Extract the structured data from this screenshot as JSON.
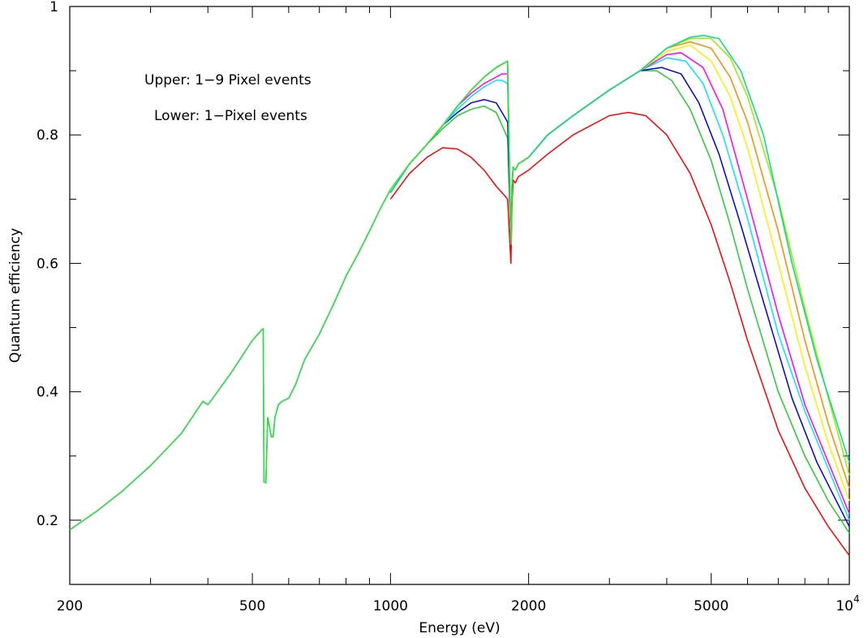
{
  "chart_data": {
    "type": "line",
    "title": "",
    "xlabel": "Energy (eV)",
    "ylabel": "Quantum efficiency",
    "xscale": "log",
    "xlim": [
      200,
      10000
    ],
    "ylim": [
      0.1,
      1.0
    ],
    "grid": false,
    "legend": "none",
    "x_ticks": [
      {
        "value": 200,
        "label": "200"
      },
      {
        "value": 500,
        "label": "500"
      },
      {
        "value": 1000,
        "label": "1000"
      },
      {
        "value": 2000,
        "label": "2000"
      },
      {
        "value": 5000,
        "label": "5000"
      },
      {
        "value": 10000,
        "label": "10",
        "sup": "4"
      }
    ],
    "y_ticks": [
      {
        "value": 0.2,
        "label": "0.2"
      },
      {
        "value": 0.4,
        "label": "0.4"
      },
      {
        "value": 0.6,
        "label": "0.6"
      },
      {
        "value": 0.8,
        "label": "0.8"
      },
      {
        "value": 1.0,
        "label": "1"
      }
    ],
    "annotations": [
      "Upper: 1−9 Pixel events",
      "Lower: 1−Pixel events"
    ],
    "common_low_energy": {
      "x": [
        200,
        230,
        260,
        300,
        350,
        390,
        400,
        410,
        450,
        500,
        525,
        528,
        530,
        535,
        540,
        545,
        550,
        555,
        560,
        570,
        580,
        600,
        620,
        650,
        700,
        750,
        800,
        850,
        900,
        950,
        1000
      ],
      "y": [
        0.185,
        0.215,
        0.245,
        0.285,
        0.335,
        0.385,
        0.38,
        0.39,
        0.43,
        0.48,
        0.497,
        0.498,
        0.26,
        0.258,
        0.36,
        0.345,
        0.33,
        0.33,
        0.36,
        0.38,
        0.385,
        0.39,
        0.41,
        0.45,
        0.49,
        0.535,
        0.58,
        0.615,
        0.65,
        0.685,
        0.715
      ]
    },
    "series": [
      {
        "color": "#ff0000",
        "x": [
          1000,
          1100,
          1200,
          1300,
          1400,
          1500,
          1600,
          1700,
          1750,
          1800,
          1830,
          1840,
          1850,
          1870,
          1900,
          2000,
          2200,
          2500,
          3000,
          3300,
          3600,
          4000,
          4500,
          5000,
          5500,
          6000,
          7000,
          8000,
          9000,
          10000
        ],
        "y": [
          0.7,
          0.74,
          0.765,
          0.78,
          0.778,
          0.765,
          0.745,
          0.72,
          0.71,
          0.7,
          0.6,
          0.69,
          0.73,
          0.725,
          0.735,
          0.745,
          0.77,
          0.8,
          0.83,
          0.835,
          0.83,
          0.8,
          0.74,
          0.66,
          0.57,
          0.48,
          0.34,
          0.25,
          0.19,
          0.145
        ]
      },
      {
        "color": "#22cc33",
        "x": [
          1000,
          1100,
          1200,
          1300,
          1400,
          1500,
          1600,
          1700,
          1750,
          1800,
          1830,
          1840,
          1850,
          1870,
          1900,
          2000,
          2200,
          2500,
          3000,
          3500,
          3800,
          4100,
          4500,
          5000,
          5500,
          6000,
          7000,
          8000,
          9000,
          10000
        ],
        "y": [
          0.71,
          0.755,
          0.785,
          0.81,
          0.83,
          0.84,
          0.845,
          0.835,
          0.815,
          0.795,
          0.63,
          0.72,
          0.75,
          0.745,
          0.755,
          0.765,
          0.8,
          0.83,
          0.87,
          0.9,
          0.9,
          0.885,
          0.84,
          0.76,
          0.66,
          0.56,
          0.4,
          0.3,
          0.23,
          0.18
        ]
      },
      {
        "color": "#0000dd",
        "x": [
          1000,
          1100,
          1200,
          1300,
          1400,
          1500,
          1600,
          1700,
          1750,
          1800,
          1830,
          1840,
          1850,
          1870,
          1900,
          2000,
          2200,
          2500,
          3000,
          3500,
          3900,
          4300,
          4700,
          5200,
          5800,
          6500,
          7500,
          8500,
          10000
        ],
        "y": [
          0.71,
          0.755,
          0.785,
          0.815,
          0.835,
          0.85,
          0.855,
          0.85,
          0.835,
          0.82,
          0.63,
          0.72,
          0.75,
          0.745,
          0.755,
          0.765,
          0.8,
          0.83,
          0.87,
          0.9,
          0.905,
          0.895,
          0.85,
          0.77,
          0.66,
          0.54,
          0.39,
          0.29,
          0.19
        ]
      },
      {
        "color": "#00e5ff",
        "x": [
          1000,
          1100,
          1200,
          1300,
          1400,
          1500,
          1600,
          1700,
          1750,
          1800,
          1830,
          1840,
          1850,
          1870,
          1900,
          2000,
          2200,
          2500,
          3000,
          3500,
          4000,
          4400,
          4800,
          5300,
          6000,
          7000,
          8000,
          9000,
          10000
        ],
        "y": [
          0.71,
          0.755,
          0.785,
          0.815,
          0.84,
          0.86,
          0.875,
          0.885,
          0.885,
          0.88,
          0.63,
          0.72,
          0.75,
          0.745,
          0.755,
          0.765,
          0.8,
          0.83,
          0.87,
          0.9,
          0.92,
          0.915,
          0.88,
          0.8,
          0.67,
          0.49,
          0.37,
          0.28,
          0.2
        ]
      },
      {
        "color": "#ff00ff",
        "x": [
          1000,
          1100,
          1200,
          1300,
          1400,
          1500,
          1600,
          1700,
          1750,
          1800,
          1830,
          1840,
          1850,
          1870,
          1900,
          2000,
          2200,
          2500,
          3000,
          3500,
          4000,
          4300,
          4800,
          5300,
          6000,
          7000,
          8000,
          9000,
          10000
        ],
        "y": [
          0.71,
          0.755,
          0.785,
          0.815,
          0.845,
          0.865,
          0.88,
          0.89,
          0.895,
          0.895,
          0.63,
          0.72,
          0.75,
          0.745,
          0.755,
          0.765,
          0.8,
          0.83,
          0.87,
          0.9,
          0.925,
          0.928,
          0.905,
          0.84,
          0.7,
          0.52,
          0.38,
          0.29,
          0.21
        ]
      },
      {
        "color": "#ffee00",
        "x": [
          1000,
          1100,
          1200,
          1300,
          1400,
          1500,
          1600,
          1700,
          1750,
          1800,
          1830,
          1840,
          1850,
          1870,
          1900,
          2000,
          2200,
          2500,
          3000,
          3500,
          4000,
          4500,
          5000,
          5500,
          6000,
          7000,
          8000,
          9000,
          10000
        ],
        "y": [
          0.71,
          0.755,
          0.785,
          0.815,
          0.845,
          0.87,
          0.89,
          0.905,
          0.91,
          0.915,
          0.63,
          0.72,
          0.75,
          0.745,
          0.755,
          0.765,
          0.8,
          0.83,
          0.87,
          0.9,
          0.93,
          0.94,
          0.915,
          0.86,
          0.78,
          0.6,
          0.44,
          0.32,
          0.23
        ]
      },
      {
        "color": "#ff8800",
        "x": [
          1000,
          1100,
          1200,
          1300,
          1400,
          1500,
          1600,
          1700,
          1750,
          1800,
          1830,
          1840,
          1850,
          1870,
          1900,
          2000,
          2200,
          2500,
          3000,
          3500,
          4000,
          4500,
          5000,
          5500,
          6000,
          7000,
          8000,
          9000,
          10000
        ],
        "y": [
          0.71,
          0.755,
          0.785,
          0.815,
          0.845,
          0.87,
          0.89,
          0.905,
          0.91,
          0.915,
          0.63,
          0.72,
          0.75,
          0.745,
          0.755,
          0.765,
          0.8,
          0.83,
          0.87,
          0.9,
          0.935,
          0.945,
          0.935,
          0.89,
          0.82,
          0.65,
          0.48,
          0.35,
          0.25
        ]
      },
      {
        "color": "#99ee00",
        "x": [
          1000,
          1100,
          1200,
          1300,
          1400,
          1500,
          1600,
          1700,
          1750,
          1800,
          1830,
          1840,
          1850,
          1870,
          1900,
          2000,
          2200,
          2500,
          3000,
          3500,
          4000,
          4500,
          5000,
          5500,
          6000,
          7000,
          8000,
          9000,
          10000
        ],
        "y": [
          0.71,
          0.755,
          0.785,
          0.815,
          0.845,
          0.87,
          0.89,
          0.905,
          0.91,
          0.915,
          0.63,
          0.72,
          0.75,
          0.745,
          0.755,
          0.765,
          0.8,
          0.83,
          0.87,
          0.9,
          0.935,
          0.95,
          0.95,
          0.92,
          0.86,
          0.7,
          0.53,
          0.39,
          0.27
        ]
      },
      {
        "color": "#00dd88",
        "x": [
          1000,
          1100,
          1200,
          1300,
          1400,
          1500,
          1600,
          1700,
          1750,
          1800,
          1830,
          1840,
          1850,
          1870,
          1900,
          2000,
          2200,
          2500,
          3000,
          3500,
          4000,
          4500,
          4800,
          5200,
          5800,
          6500,
          7500,
          8500,
          10000
        ],
        "y": [
          0.71,
          0.755,
          0.785,
          0.815,
          0.845,
          0.87,
          0.89,
          0.905,
          0.91,
          0.915,
          0.63,
          0.72,
          0.75,
          0.745,
          0.755,
          0.765,
          0.8,
          0.83,
          0.87,
          0.9,
          0.935,
          0.952,
          0.955,
          0.95,
          0.9,
          0.8,
          0.6,
          0.45,
          0.29
        ]
      },
      {
        "color": "#33dd44",
        "x": [
          200,
          230,
          260,
          300,
          350,
          390,
          400,
          410,
          450,
          500,
          525,
          528,
          530,
          535,
          540,
          545,
          550,
          555,
          560,
          570,
          580,
          600,
          620,
          650,
          700,
          750,
          800,
          850,
          900,
          950,
          1000,
          1100,
          1200,
          1300,
          1400,
          1500,
          1600,
          1700,
          1750,
          1800,
          1830,
          1840,
          1850,
          1870,
          1900,
          2000
        ],
        "y": [
          0.185,
          0.215,
          0.245,
          0.285,
          0.335,
          0.385,
          0.38,
          0.39,
          0.43,
          0.48,
          0.497,
          0.498,
          0.26,
          0.258,
          0.36,
          0.345,
          0.33,
          0.33,
          0.36,
          0.38,
          0.385,
          0.39,
          0.41,
          0.45,
          0.49,
          0.535,
          0.58,
          0.615,
          0.65,
          0.685,
          0.715,
          0.755,
          0.785,
          0.815,
          0.845,
          0.87,
          0.89,
          0.905,
          0.91,
          0.915,
          0.63,
          0.72,
          0.75,
          0.745,
          0.755,
          0.765
        ]
      }
    ]
  }
}
